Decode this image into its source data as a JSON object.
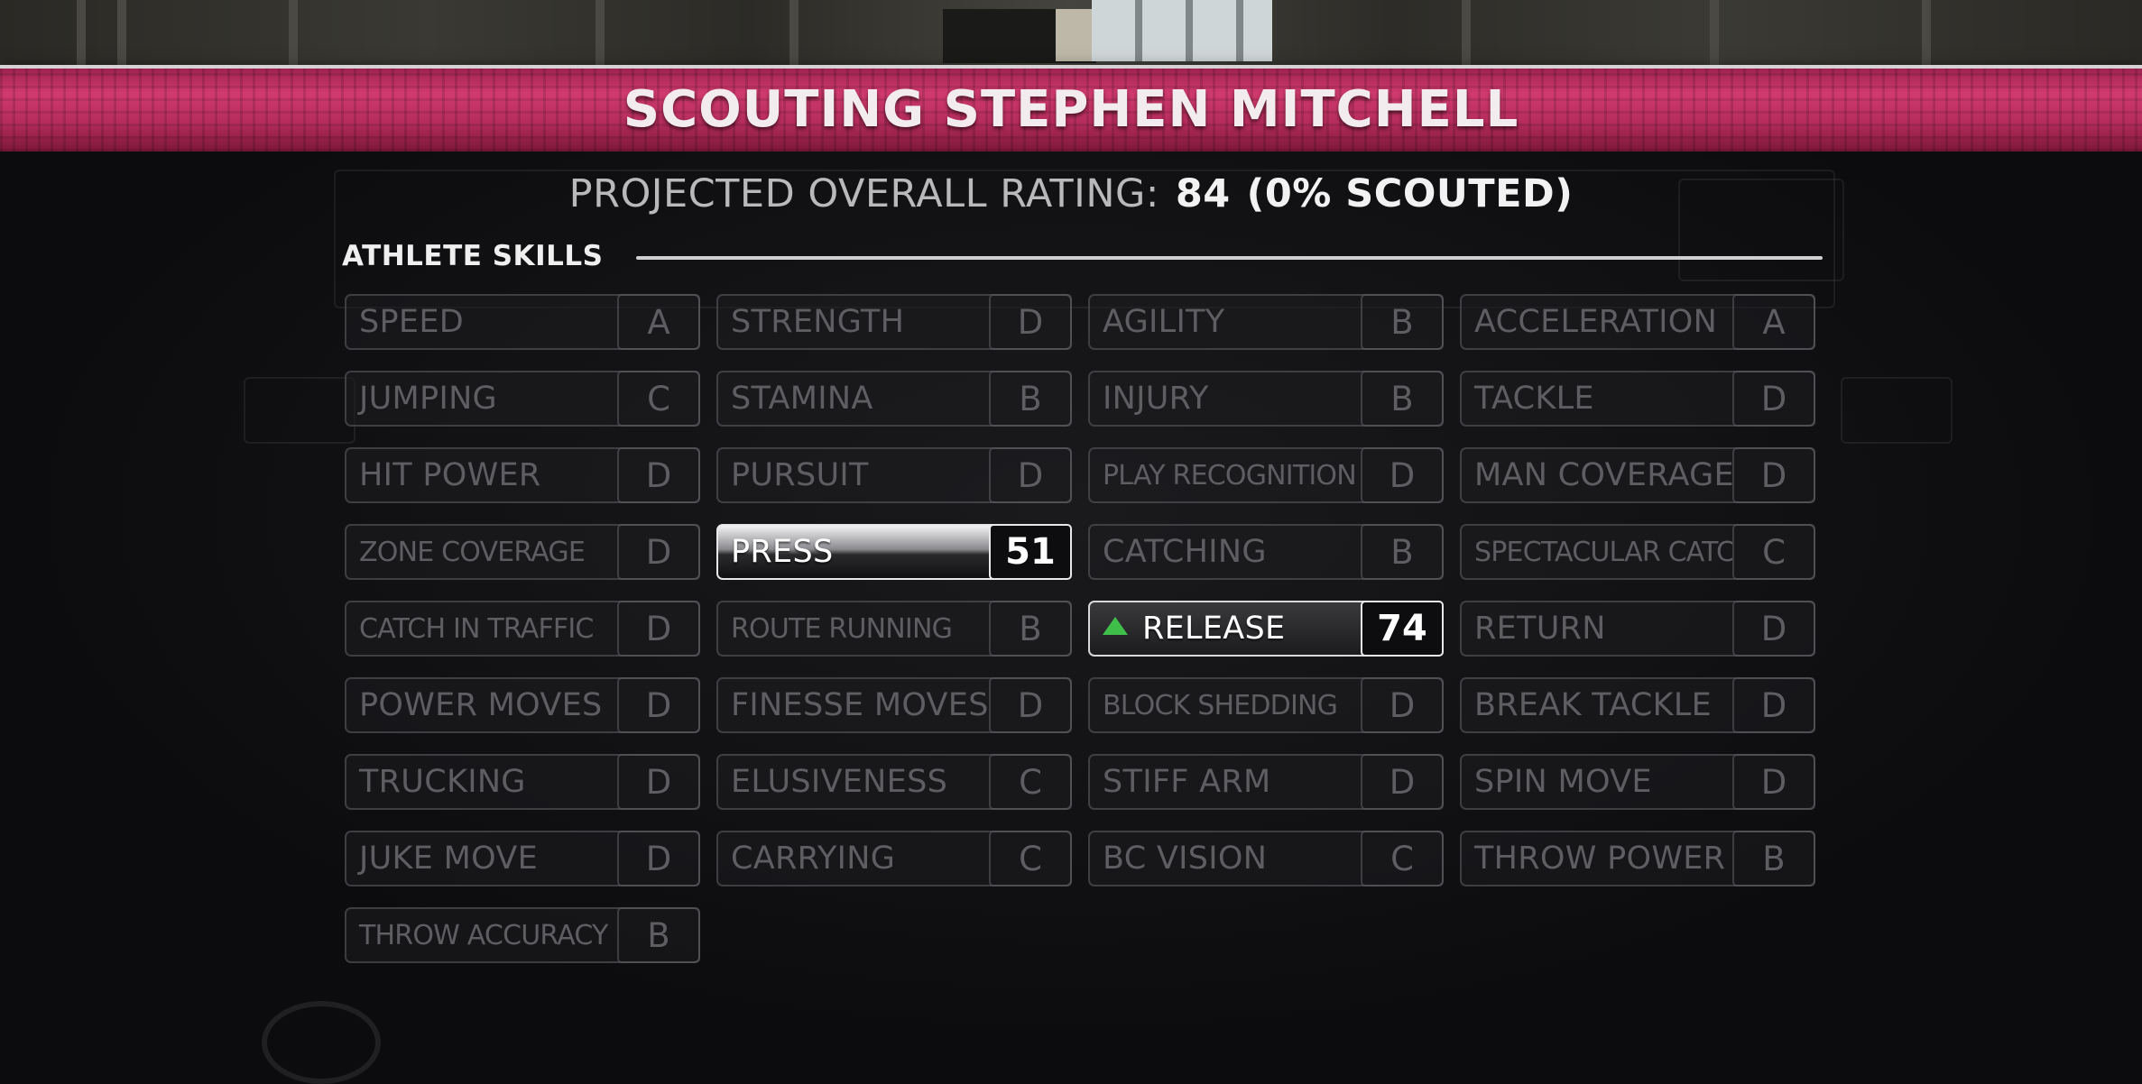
{
  "header": {
    "title": "SCOUTING STEPHEN MITCHELL"
  },
  "projected": {
    "label": "PROJECTED OVERALL RATING:",
    "value": "84",
    "scouted": "(0% SCOUTED)"
  },
  "section": {
    "title": "ATHLETE SKILLS"
  },
  "skills": [
    {
      "name": "SPEED",
      "grade": "A"
    },
    {
      "name": "STRENGTH",
      "grade": "D"
    },
    {
      "name": "AGILITY",
      "grade": "B"
    },
    {
      "name": "ACCELERATION",
      "grade": "A"
    },
    {
      "name": "JUMPING",
      "grade": "C"
    },
    {
      "name": "STAMINA",
      "grade": "B"
    },
    {
      "name": "INJURY",
      "grade": "B"
    },
    {
      "name": "TACKLE",
      "grade": "D"
    },
    {
      "name": "HIT POWER",
      "grade": "D"
    },
    {
      "name": "PURSUIT",
      "grade": "D"
    },
    {
      "name": "PLAY RECOGNITION",
      "grade": "D"
    },
    {
      "name": "MAN COVERAGE",
      "grade": "D"
    },
    {
      "name": "ZONE COVERAGE",
      "grade": "D"
    },
    {
      "name": "PRESS",
      "grade": "51",
      "state": "revealed"
    },
    {
      "name": "CATCHING",
      "grade": "B"
    },
    {
      "name": "SPECTACULAR CATCH",
      "grade": "C"
    },
    {
      "name": "CATCH IN TRAFFIC",
      "grade": "D"
    },
    {
      "name": "ROUTE RUNNING",
      "grade": "B"
    },
    {
      "name": "RELEASE",
      "grade": "74",
      "state": "revealed",
      "indicator": "up-arrow-green"
    },
    {
      "name": "RETURN",
      "grade": "D"
    },
    {
      "name": "POWER MOVES",
      "grade": "D"
    },
    {
      "name": "FINESSE MOVES",
      "grade": "D"
    },
    {
      "name": "BLOCK SHEDDING",
      "grade": "D"
    },
    {
      "name": "BREAK TACKLE",
      "grade": "D"
    },
    {
      "name": "TRUCKING",
      "grade": "D"
    },
    {
      "name": "ELUSIVENESS",
      "grade": "C"
    },
    {
      "name": "STIFF ARM",
      "grade": "D"
    },
    {
      "name": "SPIN MOVE",
      "grade": "D"
    },
    {
      "name": "JUKE MOVE",
      "grade": "D"
    },
    {
      "name": "CARRYING",
      "grade": "C"
    },
    {
      "name": "BC VISION",
      "grade": "C"
    },
    {
      "name": "THROW POWER",
      "grade": "B"
    },
    {
      "name": "THROW ACCURACY",
      "grade": "B"
    }
  ],
  "colors": {
    "header_band": "#c0305f",
    "inactive_text": "#5e5e62",
    "active_text": "#ffffff",
    "increase_indicator": "#3fbf4a"
  }
}
